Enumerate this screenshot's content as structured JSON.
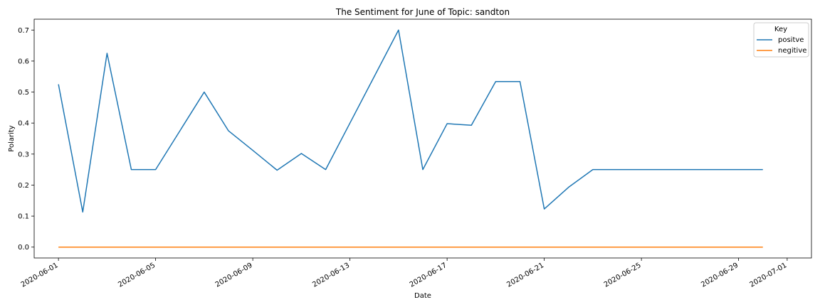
{
  "chart_data": {
    "type": "line",
    "title": "The Sentiment for June of Topic: sandton",
    "xlabel": "Date",
    "ylabel": "Polarity",
    "x": [
      "2020-06-01",
      "2020-06-02",
      "2020-06-03",
      "2020-06-04",
      "2020-06-05",
      "2020-06-06",
      "2020-06-07",
      "2020-06-08",
      "2020-06-09",
      "2020-06-10",
      "2020-06-11",
      "2020-06-12",
      "2020-06-13",
      "2020-06-14",
      "2020-06-15",
      "2020-06-16",
      "2020-06-17",
      "2020-06-18",
      "2020-06-19",
      "2020-06-20",
      "2020-06-21",
      "2020-06-22",
      "2020-06-23",
      "2020-06-24",
      "2020-06-25",
      "2020-06-26",
      "2020-06-27",
      "2020-06-28",
      "2020-06-29",
      "2020-06-30"
    ],
    "series": [
      {
        "name": "positve",
        "color": "#1f77b4",
        "values": [
          0.525,
          0.113,
          0.625,
          0.25,
          0.25,
          0.375,
          0.5,
          0.375,
          0.312,
          0.248,
          0.302,
          0.25,
          0.4,
          0.55,
          0.7,
          0.25,
          0.398,
          0.393,
          0.534,
          0.534,
          0.123,
          0.193,
          0.25,
          0.25,
          0.25,
          0.25,
          0.25,
          0.25,
          0.25,
          0.25
        ]
      },
      {
        "name": "negitive",
        "color": "#ff7f0e",
        "values": [
          0,
          0,
          0,
          0,
          0,
          0,
          0,
          0,
          0,
          0,
          0,
          0,
          0,
          0,
          0,
          0,
          0,
          0,
          0,
          0,
          0,
          0,
          0,
          0,
          0,
          0,
          0,
          0,
          0,
          0
        ]
      }
    ],
    "ylim": [
      -0.035,
      0.735
    ],
    "xlim": [
      "2020-05-31",
      "2020-07-02"
    ],
    "yticks": [
      0.0,
      0.1,
      0.2,
      0.3,
      0.4,
      0.5,
      0.6,
      0.7
    ],
    "ytick_labels": [
      "0.0",
      "0.1",
      "0.2",
      "0.3",
      "0.4",
      "0.5",
      "0.6",
      "0.7"
    ],
    "xticks": [
      "2020-06-01",
      "2020-06-05",
      "2020-06-09",
      "2020-06-13",
      "2020-06-17",
      "2020-06-21",
      "2020-06-25",
      "2020-06-29",
      "2020-07-01"
    ],
    "xtick_labels": [
      "2020-06-01",
      "2020-06-05",
      "2020-06-09",
      "2020-06-13",
      "2020-06-17",
      "2020-06-21",
      "2020-06-25",
      "2020-06-29",
      "2020-07-01"
    ],
    "grid": false,
    "legend": {
      "title": "Key",
      "placement": "top-right"
    }
  }
}
